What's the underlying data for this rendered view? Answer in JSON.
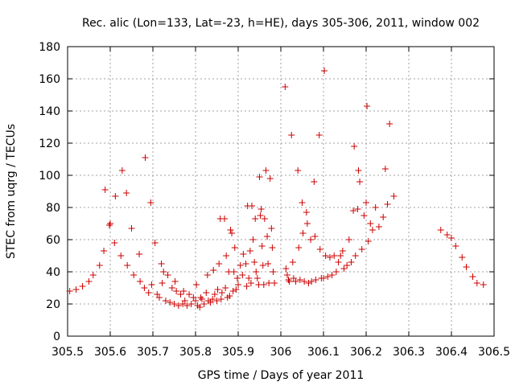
{
  "chart_data": {
    "type": "scatter",
    "title": "Rec. alic (Lon=133, Lat=-23, h=HE), days 305-306, 2011, window 002",
    "xlabel": "GPS time / Days of year 2011",
    "ylabel": "STEC from uqrg / TECUs",
    "xlim": [
      305.5,
      306.5
    ],
    "ylim": [
      0,
      180
    ],
    "xticks": [
      305.5,
      305.6,
      305.7,
      305.8,
      305.9,
      306.0,
      306.1,
      306.2,
      306.3,
      306.4,
      306.5
    ],
    "xtick_labels": [
      "305.5",
      "305.6",
      "305.7",
      "305.8",
      "305.9",
      "306",
      "306.1",
      "306.2",
      "306.3",
      "306.4",
      "306.5"
    ],
    "yticks": [
      0,
      20,
      40,
      60,
      80,
      100,
      120,
      140,
      160,
      180
    ],
    "ytick_labels": [
      "0",
      "20",
      "40",
      "60",
      "80",
      "100",
      "120",
      "140",
      "160",
      "180"
    ],
    "grid": true,
    "marker": "+",
    "color": "#cc0000",
    "points": [
      [
        305.505,
        28
      ],
      [
        305.52,
        29
      ],
      [
        305.535,
        31
      ],
      [
        305.55,
        34
      ],
      [
        305.56,
        38
      ],
      [
        305.575,
        44
      ],
      [
        305.585,
        53
      ],
      [
        305.588,
        91
      ],
      [
        305.598,
        69
      ],
      [
        305.6,
        70
      ],
      [
        305.61,
        58
      ],
      [
        305.612,
        87
      ],
      [
        305.625,
        50
      ],
      [
        305.628,
        103
      ],
      [
        305.638,
        89
      ],
      [
        305.64,
        44
      ],
      [
        305.65,
        67
      ],
      [
        305.655,
        38
      ],
      [
        305.668,
        51
      ],
      [
        305.67,
        34
      ],
      [
        305.68,
        30
      ],
      [
        305.682,
        111
      ],
      [
        305.69,
        27
      ],
      [
        305.695,
        83
      ],
      [
        305.697,
        32
      ],
      [
        305.705,
        58
      ],
      [
        305.71,
        26
      ],
      [
        305.715,
        24
      ],
      [
        305.72,
        45
      ],
      [
        305.722,
        33
      ],
      [
        305.725,
        40
      ],
      [
        305.73,
        22
      ],
      [
        305.735,
        38
      ],
      [
        305.74,
        21
      ],
      [
        305.745,
        30
      ],
      [
        305.75,
        20
      ],
      [
        305.752,
        34
      ],
      [
        305.755,
        28
      ],
      [
        305.76,
        19
      ],
      [
        305.765,
        26
      ],
      [
        305.77,
        20
      ],
      [
        305.772,
        28
      ],
      [
        305.775,
        22
      ],
      [
        305.78,
        19
      ],
      [
        305.785,
        26
      ],
      [
        305.79,
        20
      ],
      [
        305.795,
        24
      ],
      [
        305.8,
        22
      ],
      [
        305.802,
        32
      ],
      [
        305.805,
        19
      ],
      [
        305.81,
        18
      ],
      [
        305.812,
        24
      ],
      [
        305.815,
        23
      ],
      [
        305.82,
        20
      ],
      [
        305.825,
        27
      ],
      [
        305.828,
        38
      ],
      [
        305.83,
        22
      ],
      [
        305.835,
        21
      ],
      [
        305.84,
        23
      ],
      [
        305.842,
        41
      ],
      [
        305.845,
        26
      ],
      [
        305.85,
        22
      ],
      [
        305.852,
        29
      ],
      [
        305.855,
        45
      ],
      [
        305.858,
        73
      ],
      [
        305.86,
        23
      ],
      [
        305.862,
        27
      ],
      [
        305.868,
        73
      ],
      [
        305.87,
        30
      ],
      [
        305.872,
        50
      ],
      [
        305.875,
        24
      ],
      [
        305.878,
        40
      ],
      [
        305.88,
        25
      ],
      [
        305.882,
        66
      ],
      [
        305.885,
        64
      ],
      [
        305.888,
        28
      ],
      [
        305.89,
        40
      ],
      [
        305.892,
        55
      ],
      [
        305.895,
        29
      ],
      [
        305.898,
        36
      ],
      [
        305.9,
        32
      ],
      [
        305.905,
        44
      ],
      [
        305.91,
        38
      ],
      [
        305.912,
        51
      ],
      [
        305.918,
        45
      ],
      [
        305.92,
        31
      ],
      [
        305.922,
        81
      ],
      [
        305.925,
        36
      ],
      [
        305.928,
        53
      ],
      [
        305.93,
        33
      ],
      [
        305.932,
        81
      ],
      [
        305.935,
        60
      ],
      [
        305.938,
        46
      ],
      [
        305.94,
        73
      ],
      [
        305.942,
        40
      ],
      [
        305.945,
        36
      ],
      [
        305.948,
        32
      ],
      [
        305.95,
        99
      ],
      [
        305.952,
        75
      ],
      [
        305.954,
        79
      ],
      [
        305.956,
        56
      ],
      [
        305.958,
        44
      ],
      [
        305.96,
        32
      ],
      [
        305.962,
        73
      ],
      [
        305.965,
        103
      ],
      [
        305.968,
        62
      ],
      [
        305.97,
        45
      ],
      [
        305.972,
        33
      ],
      [
        305.975,
        98
      ],
      [
        305.978,
        67
      ],
      [
        305.98,
        55
      ],
      [
        305.982,
        40
      ],
      [
        305.985,
        33
      ],
      [
        306.01,
        155
      ],
      [
        306.012,
        42
      ],
      [
        306.015,
        38
      ],
      [
        306.018,
        35
      ],
      [
        306.02,
        34
      ],
      [
        306.025,
        125
      ],
      [
        306.028,
        46
      ],
      [
        306.03,
        36
      ],
      [
        306.035,
        34
      ],
      [
        306.04,
        103
      ],
      [
        306.042,
        55
      ],
      [
        306.045,
        35
      ],
      [
        306.05,
        83
      ],
      [
        306.052,
        64
      ],
      [
        306.055,
        34
      ],
      [
        306.06,
        77
      ],
      [
        306.062,
        70
      ],
      [
        306.065,
        33
      ],
      [
        306.07,
        60
      ],
      [
        306.072,
        34
      ],
      [
        306.078,
        96
      ],
      [
        306.08,
        62
      ],
      [
        306.082,
        35
      ],
      [
        306.09,
        125
      ],
      [
        306.092,
        54
      ],
      [
        306.095,
        36
      ],
      [
        306.1,
        36
      ],
      [
        306.102,
        165
      ],
      [
        306.105,
        50
      ],
      [
        306.11,
        37
      ],
      [
        306.115,
        49
      ],
      [
        306.12,
        38
      ],
      [
        306.125,
        50
      ],
      [
        306.13,
        40
      ],
      [
        306.135,
        46
      ],
      [
        306.14,
        50
      ],
      [
        306.145,
        53
      ],
      [
        306.148,
        42
      ],
      [
        306.155,
        44
      ],
      [
        306.16,
        60
      ],
      [
        306.165,
        46
      ],
      [
        306.17,
        78
      ],
      [
        306.172,
        118
      ],
      [
        306.175,
        50
      ],
      [
        306.18,
        79
      ],
      [
        306.182,
        103
      ],
      [
        306.185,
        96
      ],
      [
        306.19,
        54
      ],
      [
        306.195,
        75
      ],
      [
        306.2,
        83
      ],
      [
        306.202,
        143
      ],
      [
        306.205,
        59
      ],
      [
        306.21,
        70
      ],
      [
        306.215,
        66
      ],
      [
        306.222,
        80
      ],
      [
        306.23,
        68
      ],
      [
        306.24,
        74
      ],
      [
        306.245,
        104
      ],
      [
        306.25,
        82
      ],
      [
        306.255,
        132
      ],
      [
        306.265,
        87
      ],
      [
        306.375,
        66
      ],
      [
        306.39,
        63
      ],
      [
        306.4,
        61
      ],
      [
        306.41,
        56
      ],
      [
        306.425,
        49
      ],
      [
        306.435,
        43
      ],
      [
        306.45,
        37
      ],
      [
        306.46,
        33
      ],
      [
        306.475,
        32
      ]
    ]
  }
}
